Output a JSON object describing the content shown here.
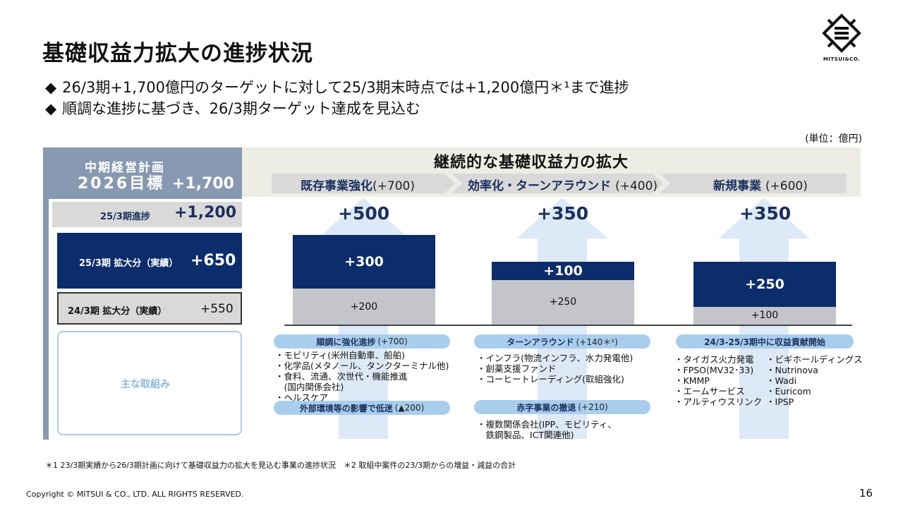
{
  "title": "基礎収益力拡大の進捗状況",
  "bullets": [
    "26/3期+1,700億円のターゲットに対して25/3期末時点では+1,200億円＊¹まで進捗",
    "順調な進捗に基づき、26/3期ターゲット達成を見込む"
  ],
  "bullet_marker": "◆",
  "unit": "(単位：億円)",
  "logo": {
    "text": "MITSUI&CO."
  },
  "left": {
    "plan_line1": "中期経営計画",
    "plan_line2_label": "2026目標",
    "plan_line2_value": "+1,700",
    "progress_label": "25/3期進捗",
    "progress_value": "+1,200",
    "fy25_label": "25/3期 拡大分（実績）",
    "fy25_value": "+650",
    "fy24_label": "24/3期  拡大分（実績）",
    "fy24_value": "+550",
    "main_label": "主な取組み"
  },
  "band": {
    "title": "継続的な基礎収益力の拡大",
    "categories": [
      {
        "name": "既存事業強化",
        "value": "(+700)"
      },
      {
        "name": "効率化・ターンアラウンド",
        "value": "(+400)"
      },
      {
        "name": "新規事業",
        "value": "(+600)"
      }
    ]
  },
  "chart_data": {
    "type": "bar",
    "stacked": true,
    "categories": [
      "既存事業強化",
      "効率化・ターンアラウンド",
      "新規事業"
    ],
    "totals": [
      "+500",
      "+350",
      "+350"
    ],
    "series": [
      {
        "name": "24/3期 拡大分（実績）",
        "values": [
          200,
          250,
          100
        ],
        "labels": [
          "+200",
          "+250",
          "+100"
        ]
      },
      {
        "name": "25/3期 拡大分（実績）",
        "values": [
          300,
          100,
          250
        ],
        "labels": [
          "+300",
          "+100",
          "+250"
        ]
      }
    ]
  },
  "col1": {
    "pill1": "順調に強化進捗",
    "pill1_value": "(+700)",
    "items1": [
      "モビリティ(米州自動車、船舶)",
      "化学品(メタノール、タンクターミナル他)",
      "食料、流通、次世代・機能推進"
    ],
    "items1_cont": "(国内関係会社)",
    "items1_last": "ヘルスケア",
    "pill2": "外部環境等の影響で低迷",
    "pill2_value": "(▲200)"
  },
  "col2": {
    "pill1": "ターンアラウンド",
    "pill1_value": "(+140＊²)",
    "items1": [
      "インフラ(物流インフラ、水力発電他)",
      "創薬支援ファンド",
      "コーヒートレーディング(取組強化)"
    ],
    "pill2": "赤字事業の撤退",
    "pill2_value": "(+210)",
    "items2": [
      "複数関係会社(IPP、モビリティ、"
    ],
    "items2_cont": "鉄鋼製品、ICT関連他)"
  },
  "col3": {
    "pill1": "24/3-25/3期中に収益貢献開始",
    "items_a": [
      "タイガス火力発電",
      "FPSO(MV32･33)",
      "KMMP",
      "エームサービス",
      "アルティウスリンク"
    ],
    "items_b": [
      "ビギホールディングス",
      "Nutrinova",
      "Wadi",
      "Euricom",
      "IPSP"
    ]
  },
  "footnote": "＊1 23/3期実績から26/3期計画に向けて基礎収益力の拡大を見込む事業の進捗状況　＊2 取組中案件の23/3期からの増益・減益の合計",
  "copyright": "Copyright © MITSUI & CO., LTD. ALL RIGHTS RESERVED.",
  "page_number": "16"
}
